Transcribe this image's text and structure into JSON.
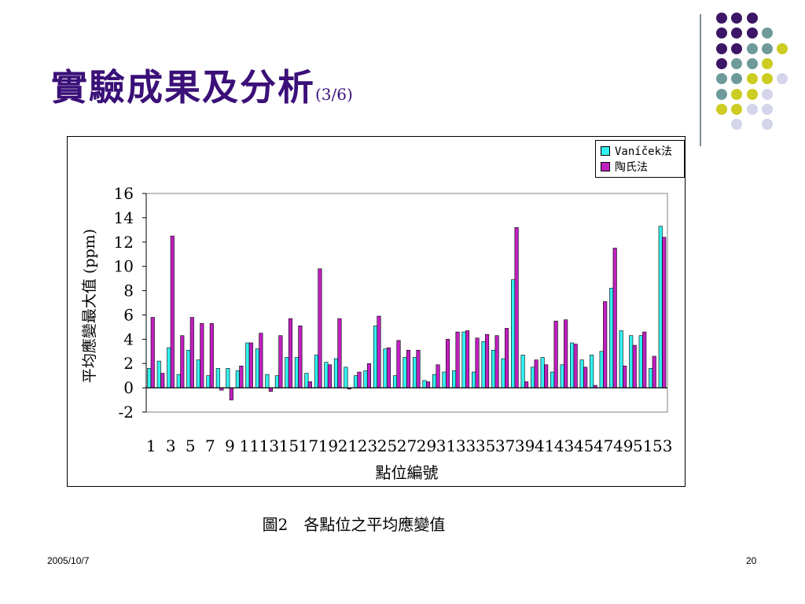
{
  "slide": {
    "title": "實驗成果及分析",
    "title_suffix": "(3/6)",
    "caption": "圖2　各點位之平均應變值",
    "date": "2005/10/7",
    "page_number": "20"
  },
  "colors": {
    "title": "#3b1078",
    "purple": "#3d1566",
    "teal": "#6f9a9a",
    "yellow": "#cccc22",
    "lavender": "#d4d4ea",
    "series_a": "#33f0f0",
    "series_b": "#c020c0"
  },
  "decor_dots_colors": [
    [
      "purple",
      "purple",
      "purple",
      null,
      null
    ],
    [
      "purple",
      "purple",
      "purple",
      "teal",
      null
    ],
    [
      "purple",
      "purple",
      "teal",
      "teal",
      "yellow"
    ],
    [
      "purple",
      "teal",
      "teal",
      "yellow",
      null
    ],
    [
      "teal",
      "teal",
      "yellow",
      "yellow",
      "lavender"
    ],
    [
      "teal",
      "yellow",
      "yellow",
      "lavender",
      null
    ],
    [
      "yellow",
      "yellow",
      "lavender",
      "lavender",
      null
    ],
    [
      null,
      "lavender",
      null,
      "lavender",
      null
    ]
  ],
  "chart_data": {
    "type": "bar",
    "categories": [
      "1",
      "2",
      "3",
      "4",
      "5",
      "6",
      "7",
      "8",
      "9",
      "10",
      "11",
      "12",
      "13",
      "14",
      "15",
      "16",
      "17",
      "18",
      "19",
      "20",
      "21",
      "22",
      "23",
      "24",
      "25",
      "26",
      "27",
      "28",
      "29",
      "30",
      "31",
      "32",
      "33",
      "34",
      "35",
      "36",
      "37",
      "38",
      "39",
      "40",
      "41",
      "42",
      "43",
      "44",
      "45",
      "46",
      "47",
      "48",
      "49",
      "50",
      "51",
      "52",
      "53"
    ],
    "tick_labels": [
      "1",
      "3",
      "5",
      "7",
      "9",
      "11",
      "13",
      "15",
      "17",
      "19",
      "21",
      "23",
      "25",
      "27",
      "29",
      "31",
      "33",
      "35",
      "37",
      "39",
      "41",
      "43",
      "45",
      "47",
      "49",
      "51",
      "53"
    ],
    "series": [
      {
        "name": "Vaníček法",
        "values": [
          1.6,
          2.2,
          3.3,
          1.1,
          3.1,
          2.3,
          1.0,
          1.6,
          1.6,
          1.4,
          3.7,
          3.2,
          1.1,
          1.0,
          2.5,
          2.5,
          1.2,
          2.7,
          2.1,
          2.4,
          1.7,
          1.0,
          1.4,
          5.1,
          3.2,
          1.0,
          2.5,
          2.5,
          0.6,
          1.1,
          1.3,
          1.4,
          4.6,
          1.3,
          3.8,
          3.1,
          2.4,
          8.9,
          2.7,
          1.7,
          2.5,
          1.3,
          1.9,
          3.7,
          2.3,
          2.7,
          3.0,
          8.2,
          4.7,
          4.3,
          4.3,
          1.6,
          13.3
        ]
      },
      {
        "name": "陶氏法",
        "values": [
          5.8,
          1.2,
          12.5,
          4.3,
          5.8,
          5.3,
          5.3,
          -0.2,
          -1.0,
          1.8,
          3.7,
          4.5,
          -0.3,
          4.3,
          5.7,
          5.1,
          0.5,
          9.8,
          1.9,
          5.7,
          -0.1,
          1.3,
          2.0,
          5.9,
          3.3,
          3.9,
          3.1,
          3.1,
          0.5,
          1.9,
          4.0,
          4.6,
          4.7,
          4.1,
          4.4,
          4.3,
          4.9,
          13.2,
          0.5,
          2.3,
          1.9,
          5.5,
          5.6,
          3.6,
          1.7,
          0.2,
          7.1,
          11.5,
          1.8,
          3.5,
          4.6,
          2.6,
          12.4
        ]
      }
    ],
    "ylim": [
      -2,
      16
    ],
    "yticks": [
      -2,
      0,
      2,
      4,
      6,
      8,
      10,
      12,
      14,
      16
    ],
    "xlabel": "點位編號",
    "ylabel": "平均應變最大值 (ppm)",
    "legend_position": "top-right",
    "grid": false
  }
}
